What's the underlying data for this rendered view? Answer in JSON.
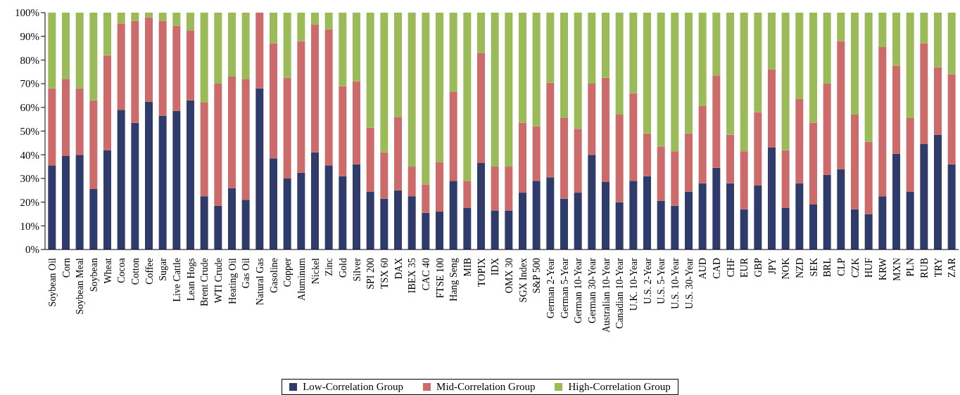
{
  "chart_data": {
    "type": "bar",
    "stacked": true,
    "categories": [
      "Soybean Oil",
      "Corn",
      "Soybean Meal",
      "Soybean",
      "Wheat",
      "Cocoa",
      "Cotton",
      "Coffee",
      "Sugar",
      "Live Cattle",
      "Lean Hogs",
      "Brent Crude",
      "WTI Crude",
      "Heating Oil",
      "Gas Oil",
      "Natural Gas",
      "Gasoline",
      "Copper",
      "Aluminum",
      "Nickel",
      "Zinc",
      "Gold",
      "Silver",
      "SPI 200",
      "TSX 60",
      "DAX",
      "IBEX 35",
      "CAC 40",
      "FTSE 100",
      "Hang Seng",
      "MIB",
      "TOPIX",
      "IDX",
      "OMX 30",
      "SGX Index",
      "S&P 500",
      "German 2-Year",
      "German 5-Year",
      "German 10-Year",
      "German 30-Year",
      "Australian 10-Year",
      "Canadian 10-Year",
      "U.K. 10-Year",
      "U.S. 2-Year",
      "U.S. 5-Year",
      "U.S. 10-Year",
      "U.S. 30-Year",
      "AUD",
      "CAD",
      "CHF",
      "EUR",
      "GBP",
      "JPY",
      "NOK",
      "NZD",
      "SEK",
      "BRL",
      "CLP",
      "CZK",
      "HUF",
      "KRW",
      "MXN",
      "PLN",
      "RUB",
      "TRY",
      "ZAR"
    ],
    "series": [
      {
        "name": "Low-Correlation Group",
        "color": "#2f3c6b",
        "values": [
          35.5,
          39.5,
          40,
          25.5,
          42,
          59,
          53.5,
          62.5,
          56.5,
          58.5,
          63,
          22.5,
          18.5,
          26,
          21,
          68,
          38.5,
          30,
          32.5,
          41,
          35.5,
          31,
          36,
          24.5,
          21.5,
          25,
          22.5,
          15.5,
          16,
          29,
          17.5,
          36.5,
          16.5,
          16.5,
          24,
          29,
          30.5,
          21.5,
          24,
          40,
          28.5,
          20,
          29,
          31,
          20.5,
          18.5,
          24.5,
          28,
          34.5,
          28,
          17,
          27,
          43,
          17.5,
          28,
          19,
          31.5,
          34,
          17,
          15,
          22.5,
          40.5,
          24.5,
          44.5,
          48.5,
          36
        ]
      },
      {
        "name": "Mid-Correlation Group",
        "color": "#cd6b6b",
        "values": [
          32.5,
          32.5,
          28,
          37.5,
          40,
          36.5,
          43,
          35.5,
          40,
          36,
          29.5,
          39.5,
          51.5,
          47,
          51,
          32,
          48.5,
          42.5,
          55.5,
          54,
          57.5,
          38,
          35,
          27,
          19.5,
          31,
          12.5,
          12,
          21,
          37.5,
          11.5,
          46.5,
          18.5,
          18.5,
          29.5,
          23,
          40,
          34,
          27,
          30,
          44,
          37,
          37,
          18,
          23,
          23,
          24.5,
          32.5,
          39,
          20.5,
          24.5,
          31,
          33,
          24.5,
          35.5,
          34.5,
          38.5,
          54,
          40,
          30.5,
          63,
          37,
          31,
          42.5,
          28.5,
          38
        ]
      },
      {
        "name": "High-Correlation Group",
        "color": "#9bbb59",
        "values": [
          32,
          28,
          32,
          37,
          18,
          4.5,
          3.5,
          2,
          3.5,
          5.5,
          7.5,
          38,
          30,
          27,
          28,
          0,
          13,
          27.5,
          12,
          5,
          7,
          31,
          29,
          48.5,
          59,
          44,
          65,
          72.5,
          63,
          33.5,
          71,
          17,
          65,
          65,
          46.5,
          48,
          29.5,
          44.5,
          49,
          30,
          27.5,
          43,
          34,
          51,
          56.5,
          58.5,
          51,
          39.5,
          26.5,
          51.5,
          58.5,
          42,
          24,
          58,
          36.5,
          46.5,
          30,
          12,
          43,
          54.5,
          14.5,
          22.5,
          44.5,
          13,
          23,
          26
        ]
      }
    ],
    "ylim": [
      0,
      100
    ],
    "yticks": [
      {
        "value": 0,
        "label": "0%"
      },
      {
        "value": 10,
        "label": "10%"
      },
      {
        "value": 20,
        "label": "20%"
      },
      {
        "value": 30,
        "label": "30%"
      },
      {
        "value": 40,
        "label": "40%"
      },
      {
        "value": 50,
        "label": "50%"
      },
      {
        "value": 60,
        "label": "60%"
      },
      {
        "value": 70,
        "label": "70%"
      },
      {
        "value": 80,
        "label": "80%"
      },
      {
        "value": 90,
        "label": "90%"
      },
      {
        "value": 100,
        "label": "100%"
      }
    ],
    "legend": "bottom"
  }
}
